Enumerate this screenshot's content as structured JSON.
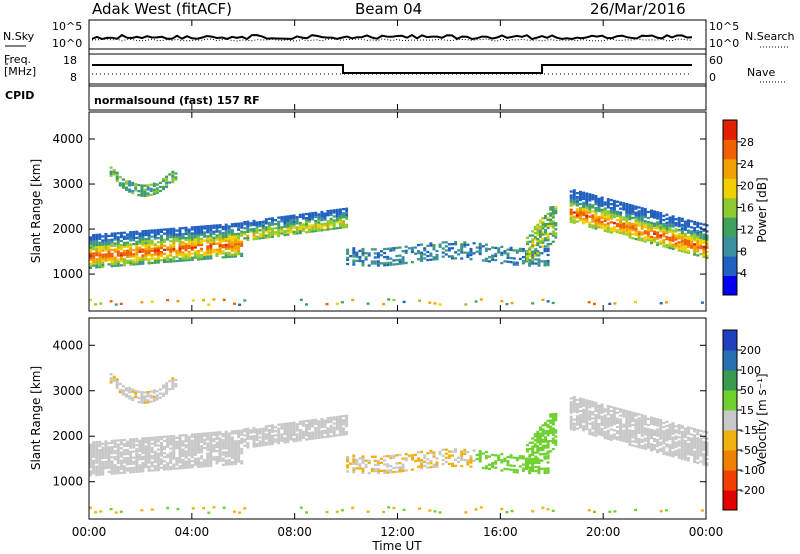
{
  "header": {
    "title": "Adak West (fitACF)",
    "beam": "Beam 04",
    "date": "26/Mar/2016"
  },
  "summary_panels": {
    "noise": {
      "left_label": "N.Sky",
      "left_ticks": [
        "10^5",
        "10^0"
      ],
      "right_ticks": [
        "10^5",
        "10^0"
      ],
      "right_label": "N.Search"
    },
    "freq": {
      "left_label_1": "Freq.",
      "left_label_2": "[MHz]",
      "left_ticks": [
        "18",
        "8"
      ],
      "right_ticks": [
        "60",
        "0"
      ],
      "right_label": "Nave"
    },
    "cpid": {
      "left_label": "CPID",
      "program_text": "normalsound (fast) 157 RF"
    }
  },
  "chart_data": [
    {
      "type": "heatmap",
      "name": "power",
      "ylabel": "Slant Range [km]",
      "ylim": [
        180,
        4600
      ],
      "yticks": [
        1000,
        2000,
        3000,
        4000
      ],
      "xlabel": "",
      "xticks": [
        "00:00",
        "04:00",
        "08:00",
        "12:00",
        "16:00",
        "20:00",
        "00:00"
      ],
      "colorbar": {
        "label": "Power [dB]",
        "ticks": [
          "4",
          "8",
          "12",
          "16",
          "20",
          "24",
          "28"
        ],
        "colors": [
          "#0000ee",
          "#2060c0",
          "#3a8fa0",
          "#40a060",
          "#90c830",
          "#f0d000",
          "#f0a000",
          "#f06000",
          "#e02000"
        ]
      },
      "regions": [
        {
          "start_hr": 0.0,
          "end_hr": 10.0,
          "description": "main band ~1300-2200 km rising with time",
          "peak_dB": 28
        },
        {
          "start_hr": 0.8,
          "end_hr": 3.4,
          "description": "arc 2700-3300 km",
          "peak_dB": 14
        },
        {
          "start_hr": 10.0,
          "end_hr": 17.8,
          "description": "sparse 1200-1700 km",
          "peak_dB": 10
        },
        {
          "start_hr": 17.0,
          "end_hr": 18.2,
          "description": "stripes rising 1300-2700 km",
          "peak_dB": 20
        },
        {
          "start_hr": 18.7,
          "end_hr": 24.0,
          "description": "band descending from 2900 km to 1700 km",
          "peak_dB": 28
        }
      ]
    },
    {
      "type": "heatmap",
      "name": "velocity",
      "ylabel": "Slant Range [km]",
      "ylim": [
        180,
        4600
      ],
      "yticks": [
        1000,
        2000,
        3000,
        4000
      ],
      "xlabel": "Time UT",
      "xticks": [
        "00:00",
        "04:00",
        "08:00",
        "12:00",
        "16:00",
        "20:00",
        "00:00"
      ],
      "colorbar": {
        "label": "Velocity [m s⁻¹]",
        "ticks": [
          "200",
          "100",
          "50",
          "15",
          "-15",
          "-50",
          "-100",
          "-200"
        ],
        "colors": [
          "#2040c0",
          "#2870b0",
          "#3a9a50",
          "#70d030",
          "#c8c8c8",
          "#f0b010",
          "#f08000",
          "#f04000",
          "#e00000"
        ]
      },
      "regions": [
        {
          "start_hr": 0.0,
          "end_hr": 10.0,
          "description": "mostly ground scatter (grey)",
          "velocity_ms": 0
        },
        {
          "start_hr": 10.5,
          "end_hr": 17.0,
          "description": "sparse negative velocities (orange)",
          "velocity_ms": -60
        },
        {
          "start_hr": 15.0,
          "end_hr": 18.0,
          "description": "positive velocities (green)",
          "velocity_ms": 30
        },
        {
          "start_hr": 18.7,
          "end_hr": 24.0,
          "description": "mostly ground scatter (grey)",
          "velocity_ms": 0
        }
      ]
    }
  ]
}
